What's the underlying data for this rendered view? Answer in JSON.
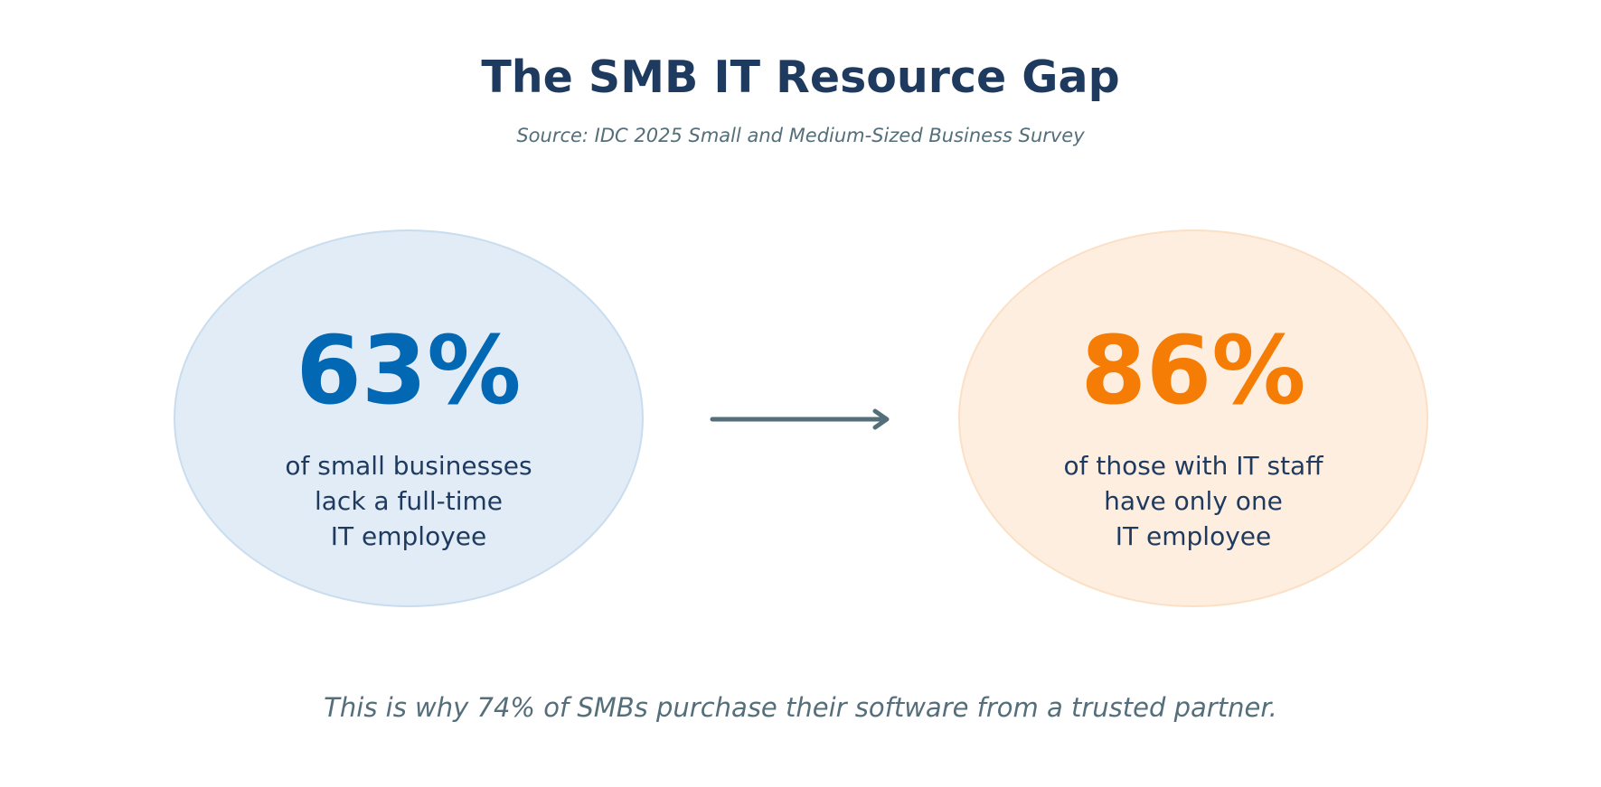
{
  "header": {
    "title": "The SMB IT Resource Gap",
    "source": "Source: IDC 2025 Small and Medium-Sized Business Survey"
  },
  "stats": [
    {
      "value": "63%",
      "label_lines": [
        "of small businesses",
        "lack a full-time",
        "IT employee"
      ],
      "color": "#0268b4",
      "background": "#e1ecf6"
    },
    {
      "value": "86%",
      "label_lines": [
        "of those with IT staff",
        "have only one",
        "IT employee"
      ],
      "color": "#f57c05",
      "background": "#fdeee0"
    }
  ],
  "arrow_icon": "arrow-right-icon",
  "footnote": "This is why 74% of SMBs purchase their software from a trusted partner."
}
